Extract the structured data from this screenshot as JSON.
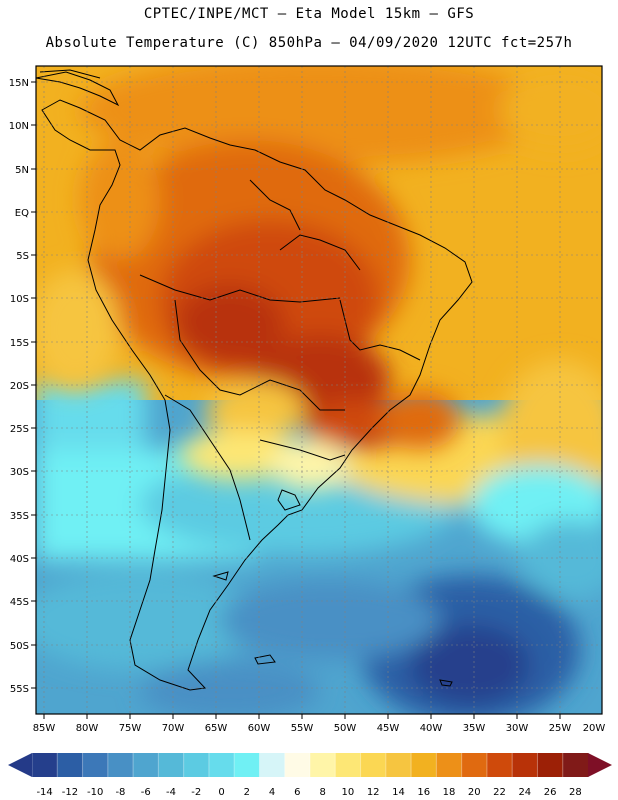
{
  "header": {
    "line1": "CPTEC/INPE/MCT –  Eta Model 15km – GFS",
    "line2": "Absolute Temperature (C) 850hPa – 04/09/2020 12UTC fct=257h"
  },
  "axes": {
    "lat_labels": [
      "15N",
      "10N",
      "5N",
      "EQ",
      "5S",
      "10S",
      "15S",
      "20S",
      "25S",
      "30S",
      "35S",
      "40S",
      "45S",
      "50S",
      "55S"
    ],
    "lon_labels": [
      "85W",
      "80W",
      "75W",
      "70W",
      "65W",
      "60W",
      "55W",
      "50W",
      "45W",
      "40W",
      "35W",
      "30W",
      "25W",
      "20W"
    ]
  },
  "colorbar": {
    "labels": [
      "-14",
      "-12",
      "-10",
      "-8",
      "-6",
      "-4",
      "-2",
      "0",
      "2",
      "4",
      "6",
      "8",
      "10",
      "12",
      "14",
      "16",
      "18",
      "20",
      "22",
      "24",
      "26",
      "28"
    ],
    "colors": [
      "#253f8c",
      "#2c5ea5",
      "#3c78b8",
      "#4890c5",
      "#4fa5cf",
      "#55b9d8",
      "#5ccbe2",
      "#66dcec",
      "#70f0f4",
      "#d6f5f8",
      "#fffbe6",
      "#fff5a8",
      "#fde775",
      "#fbd753",
      "#f6c540",
      "#f2b120",
      "#ed9018",
      "#e06a10",
      "#cf4a0b",
      "#b83208",
      "#9c2006",
      "#801a18"
    ],
    "under_color": "#243a88",
    "over_color": "#7e0f26"
  },
  "map": {
    "land_color": "#ffffff",
    "coast_color": "#000000"
  }
}
